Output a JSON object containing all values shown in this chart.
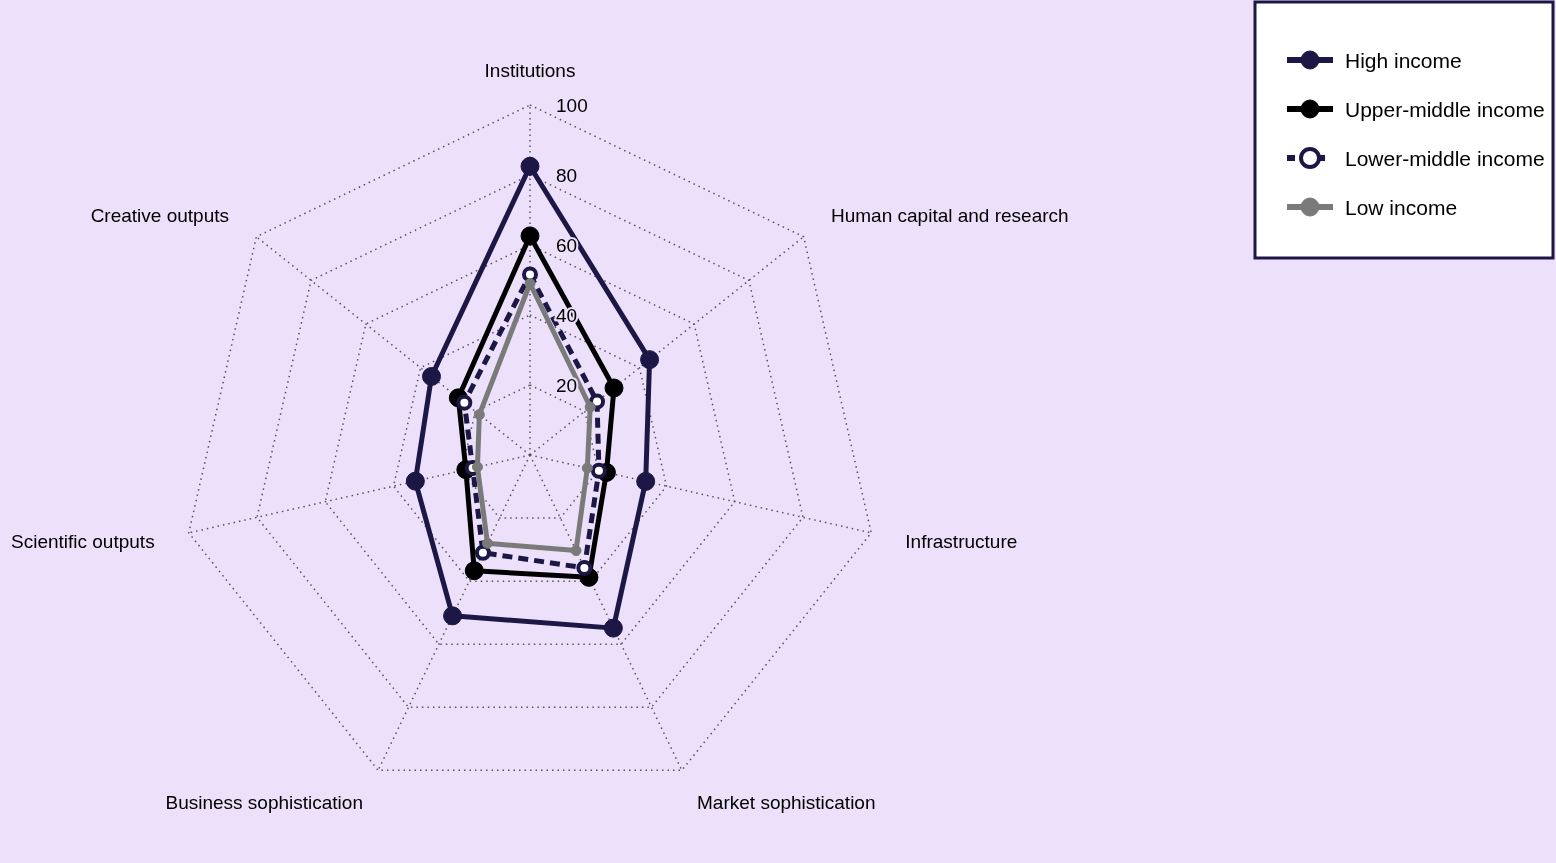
{
  "chart_data": {
    "type": "radar",
    "categories": [
      "Institutions",
      "Human capital and research",
      "Infrastructure",
      "Market sophistication",
      "Business sophistication",
      "Scientific outputs",
      "Creative outputs"
    ],
    "series": [
      {
        "name": "High income",
        "color": "#1c1745",
        "line_style": "solid",
        "values": [
          82.5,
          43.7,
          33.9,
          54.9,
          51,
          33.6,
          36
        ]
      },
      {
        "name": "Upper-middle income",
        "color": "#000000",
        "line_style": "solid",
        "values": [
          62.6,
          30.7,
          22.4,
          38.8,
          36.7,
          18.8,
          26.2
        ]
      },
      {
        "name": "Lower-middle income",
        "color": "#1c1745",
        "line_style": "dashed",
        "values": [
          51.6,
          24.5,
          20.2,
          35.8,
          31,
          16.8,
          24
        ]
      },
      {
        "name": "Low income",
        "color": "#7a7a7a",
        "line_style": "solid",
        "values": [
          49,
          22,
          16.8,
          30.3,
          28,
          15.4,
          18.5
        ]
      }
    ],
    "ylim": [
      0,
      100
    ],
    "yticks": [
      20,
      40,
      60,
      80,
      100
    ],
    "grid": true,
    "legend": "top right",
    "marker": "circle"
  }
}
